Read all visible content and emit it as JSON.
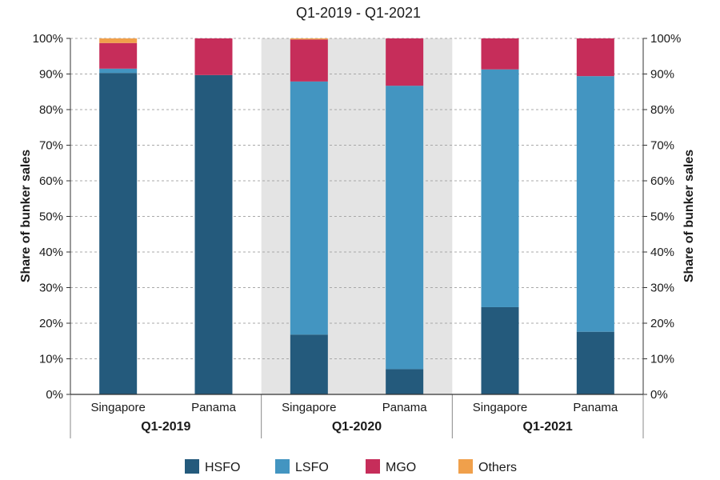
{
  "chart_data": {
    "type": "bar",
    "stacked": true,
    "title": "Q1-2019 - Q1-2021",
    "ylabel": "Share of bunker sales",
    "ylabel_right": "Share of bunker sales",
    "ylim": [
      0,
      100
    ],
    "yticks": [
      "0%",
      "10%",
      "20%",
      "30%",
      "40%",
      "50%",
      "60%",
      "70%",
      "80%",
      "90%",
      "100%"
    ],
    "groups": [
      "Q1-2019",
      "Q1-2020",
      "Q1-2021"
    ],
    "categories": [
      "Singapore",
      "Panama",
      "Singapore",
      "Panama",
      "Singapore",
      "Panama"
    ],
    "group_of_category": [
      0,
      0,
      1,
      1,
      2,
      2
    ],
    "shaded_group": 1,
    "series": [
      {
        "name": "HSFO",
        "color": "#245A7C",
        "values": [
          90.3,
          89.7,
          16.8,
          7.1,
          24.5,
          17.6
        ]
      },
      {
        "name": "LSFO",
        "color": "#4395C1",
        "values": [
          1.2,
          0.0,
          71.1,
          79.6,
          66.8,
          71.8
        ]
      },
      {
        "name": "MGO",
        "color": "#C62D5A",
        "values": [
          7.2,
          10.3,
          11.8,
          13.3,
          8.7,
          10.6
        ]
      },
      {
        "name": "Others",
        "color": "#F0A04B",
        "values": [
          1.3,
          0.0,
          0.3,
          0.0,
          0.0,
          0.0
        ]
      }
    ],
    "grid": true,
    "legend_position": "bottom"
  }
}
